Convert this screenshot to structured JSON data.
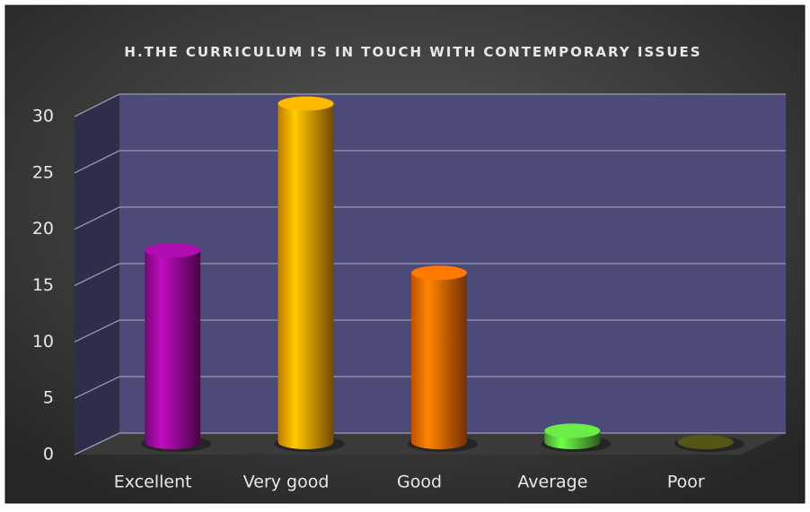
{
  "chart_data": {
    "type": "bar3d",
    "title": "H.THE CURRICULUM IS IN TOUCH WITH CONTEMPORARY ISSUES",
    "categories": [
      "Excellent",
      "Very good",
      "Good",
      "Average",
      "Poor"
    ],
    "values": [
      17,
      30,
      15,
      1,
      0
    ],
    "colors": [
      "#9a0a9a",
      "#ffa200",
      "#ff6a00",
      "#5ccf3c",
      "#4a4a14"
    ],
    "ylim": [
      0,
      30
    ],
    "yticks": [
      0,
      5,
      10,
      15,
      20,
      25,
      30
    ],
    "grid": true
  }
}
